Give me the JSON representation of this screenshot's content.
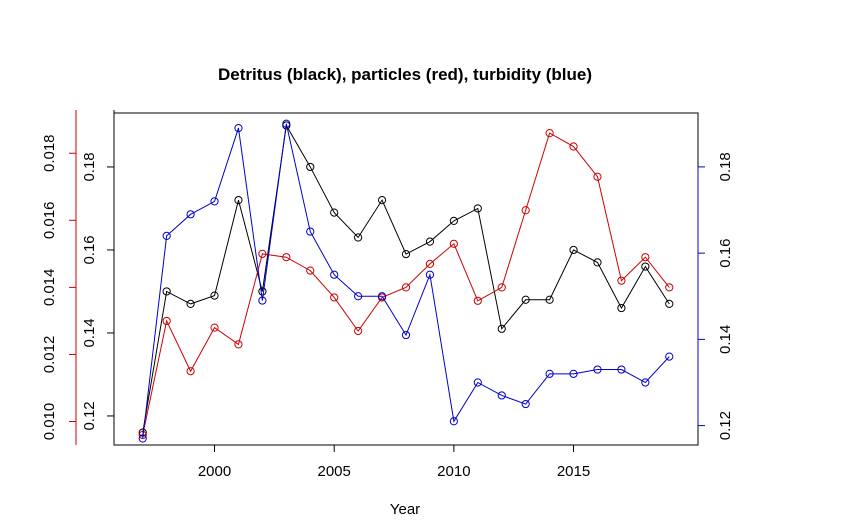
{
  "chart_data": {
    "type": "line",
    "title": "Detritus (black), particles (red), turbidity (blue)",
    "xlabel": "Year",
    "x": [
      1997,
      1998,
      1999,
      2000,
      2001,
      2002,
      2003,
      2004,
      2005,
      2006,
      2007,
      2008,
      2009,
      2010,
      2011,
      2012,
      2013,
      2014,
      2015,
      2016,
      2017,
      2018,
      2019
    ],
    "x_ticks": [
      2000,
      2005,
      2010,
      2015
    ],
    "xlim": [
      1995.8,
      2020.2
    ],
    "axes": {
      "left_outer": {
        "color": "#cc0000",
        "ylim": [
          0.0093,
          0.0192
        ],
        "ticks": [
          0.01,
          0.012,
          0.014,
          0.016,
          0.018
        ],
        "tick_labels": [
          "0.010",
          "0.012",
          "0.014",
          "0.016",
          "0.018"
        ]
      },
      "left_inner": {
        "color": "#000000",
        "ylim": [
          0.113,
          0.193
        ],
        "ticks": [
          0.12,
          0.14,
          0.16,
          0.18
        ],
        "tick_labels": [
          "0.12",
          "0.14",
          "0.16",
          "0.18"
        ]
      },
      "right": {
        "color": "#0000cc",
        "ylim": [
          0.1155,
          0.1925
        ],
        "ticks": [
          0.12,
          0.14,
          0.16,
          0.18
        ],
        "tick_labels": [
          "0.12",
          "0.14",
          "0.16",
          "0.18"
        ]
      }
    },
    "series": [
      {
        "name": "Detritus",
        "color": "#000000",
        "axis": "left_inner",
        "values": [
          0.116,
          0.15,
          0.147,
          0.149,
          0.172,
          0.15,
          0.19,
          0.18,
          0.169,
          0.163,
          0.172,
          0.159,
          0.162,
          0.167,
          0.17,
          0.141,
          0.148,
          0.148,
          0.16,
          0.157,
          0.146,
          0.156,
          0.147
        ]
      },
      {
        "name": "Particles",
        "color": "#cc0000",
        "axis": "left_outer",
        "values": [
          0.0096,
          0.013,
          0.0115,
          0.0128,
          0.0123,
          0.015,
          0.0149,
          0.0145,
          0.0137,
          0.0127,
          0.0137,
          0.014,
          0.0147,
          0.0153,
          0.0136,
          0.014,
          0.0163,
          0.0186,
          0.0182,
          0.0173,
          0.0142,
          0.0149,
          0.014
        ]
      },
      {
        "name": "Turbidity",
        "color": "#0000cc",
        "axis": "right",
        "values": [
          0.117,
          0.164,
          0.169,
          0.172,
          0.189,
          0.149,
          0.19,
          0.165,
          0.155,
          0.15,
          0.15,
          0.141,
          0.155,
          0.121,
          0.13,
          0.127,
          0.125,
          0.132,
          0.132,
          0.133,
          0.133,
          0.13,
          0.136
        ]
      }
    ],
    "grid": false,
    "legend": "none"
  }
}
